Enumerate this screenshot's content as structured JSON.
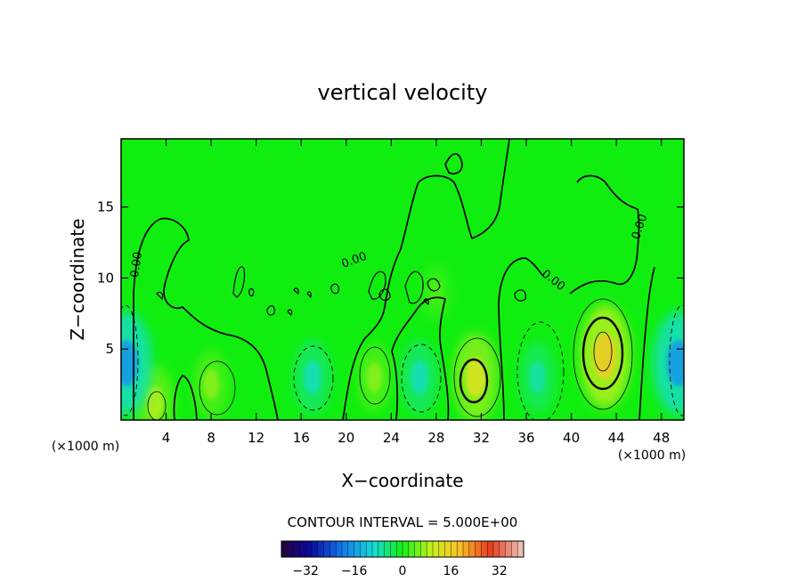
{
  "chart_data": {
    "type": "heatmap",
    "title": "vertical velocity",
    "xlabel": "X−coordinate",
    "ylabel": "Z−coordinate",
    "x_unit": "(×1000 m)",
    "y_unit": "(×1000 m)",
    "xlim": [
      0,
      50
    ],
    "ylim": [
      0,
      19.8
    ],
    "x_ticks": [
      4,
      8,
      12,
      16,
      20,
      24,
      28,
      32,
      36,
      40,
      44,
      48
    ],
    "y_ticks": [
      5,
      10,
      15
    ],
    "contour_interval_label": "CONTOUR INTERVAL = 5.000E+00",
    "contour_zero_label": "0.00",
    "colorbar": {
      "range": [
        -40,
        40
      ],
      "ticks": [
        -32,
        -16,
        0,
        16,
        32
      ],
      "tick_labels": [
        "−32",
        "−16",
        "0",
        "16",
        "32"
      ]
    },
    "features": [
      {
        "x": 43,
        "z": 4.5,
        "value": 16,
        "sign": "up"
      },
      {
        "x": 31.5,
        "z": 3.0,
        "value": 12,
        "sign": "up"
      },
      {
        "x": 8,
        "z": 2.5,
        "value": 6,
        "sign": "up"
      },
      {
        "x": 22.5,
        "z": 3.0,
        "value": 6,
        "sign": "up"
      },
      {
        "x": 3.0,
        "z": 1.2,
        "value": 8,
        "sign": "up"
      },
      {
        "x": 0.5,
        "z": 4.0,
        "value": -16,
        "sign": "down"
      },
      {
        "x": 49.5,
        "z": 4.0,
        "value": -16,
        "sign": "down"
      },
      {
        "x": 17,
        "z": 3.0,
        "value": -8,
        "sign": "down"
      },
      {
        "x": 26.5,
        "z": 3.0,
        "value": -8,
        "sign": "down"
      },
      {
        "x": 37,
        "z": 3.0,
        "value": -7,
        "sign": "down"
      },
      {
        "x": 28,
        "z": 9.0,
        "value": 3,
        "sign": "up"
      }
    ]
  },
  "colors": {
    "background": "#ffffff",
    "field_base": "#10ee10",
    "axis": "#000000"
  }
}
